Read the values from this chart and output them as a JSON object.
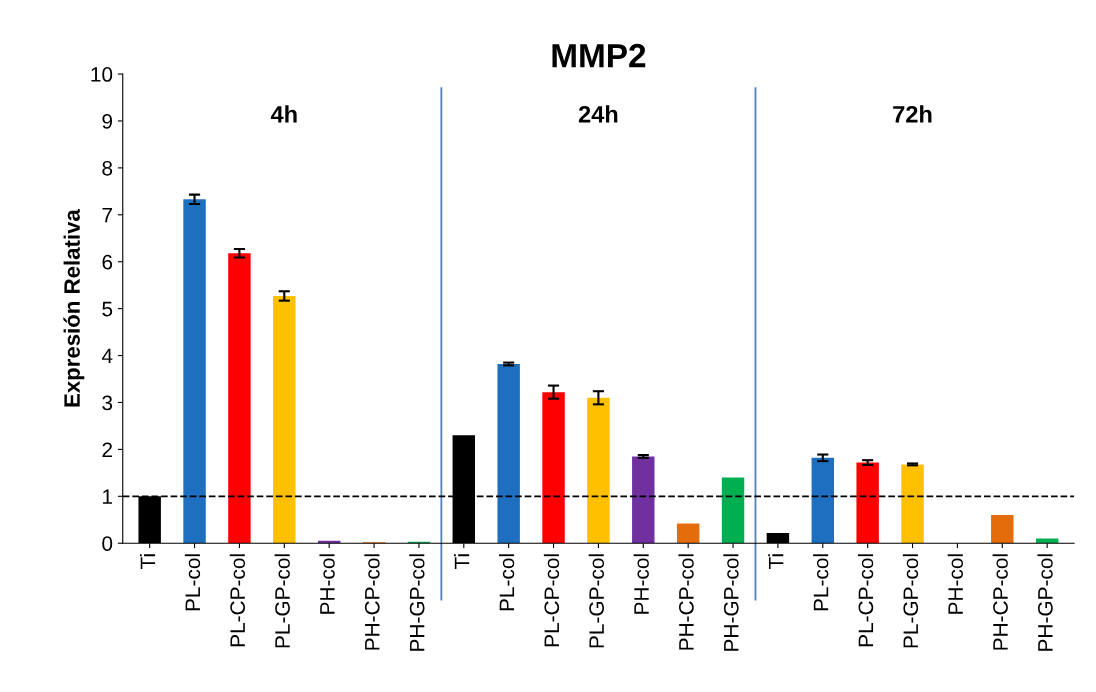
{
  "chart_data": {
    "type": "bar",
    "title": "MMP2",
    "ylabel": "Expresión Relativa",
    "categories": [
      "Ti",
      "PL-col",
      "PL-CP-col",
      "PL-GP-col",
      "PH-col",
      "PH-CP-col",
      "PH-GP-col",
      "Ti",
      "PL-col",
      "PL-CP-col",
      "PL-GP-col",
      "PH-col",
      "PH-CP-col",
      "PH-GP-col",
      "Ti",
      "PL-col",
      "PL-CP-col",
      "PL-GP-col",
      "PH-col",
      "PH-CP-col",
      "PH-GP-col"
    ],
    "values": [
      1.0,
      7.33,
      6.18,
      5.27,
      0.05,
      0.02,
      0.03,
      2.3,
      3.82,
      3.22,
      3.1,
      1.85,
      0.42,
      1.4,
      0.22,
      1.82,
      1.72,
      1.68,
      0.0,
      0.6,
      0.1
    ],
    "errors": [
      null,
      0.1,
      0.09,
      0.1,
      null,
      null,
      null,
      null,
      0.03,
      0.14,
      0.14,
      0.03,
      null,
      null,
      null,
      0.07,
      0.05,
      0.02,
      null,
      null,
      null
    ],
    "colors": [
      "#000000",
      "#1f6fc0",
      "#ff0000",
      "#ffc000",
      "#7030a0",
      "#e46c0a",
      "#00b050",
      "#000000",
      "#1f6fc0",
      "#ff0000",
      "#ffc000",
      "#7030a0",
      "#e46c0a",
      "#00b050",
      "#000000",
      "#1f6fc0",
      "#ff0000",
      "#ffc000",
      "#7030a0",
      "#e46c0a",
      "#00b050"
    ],
    "ylim": [
      0,
      10
    ],
    "yticks": [
      0,
      1,
      2,
      3,
      4,
      5,
      6,
      7,
      8,
      9,
      10
    ],
    "ref_lines": [
      {
        "axis": "y",
        "value": 1,
        "color": "#000000",
        "line_style": "dashed"
      }
    ],
    "annotations": [
      "4h",
      "24h",
      "72h"
    ],
    "grid": false,
    "legend": false
  }
}
